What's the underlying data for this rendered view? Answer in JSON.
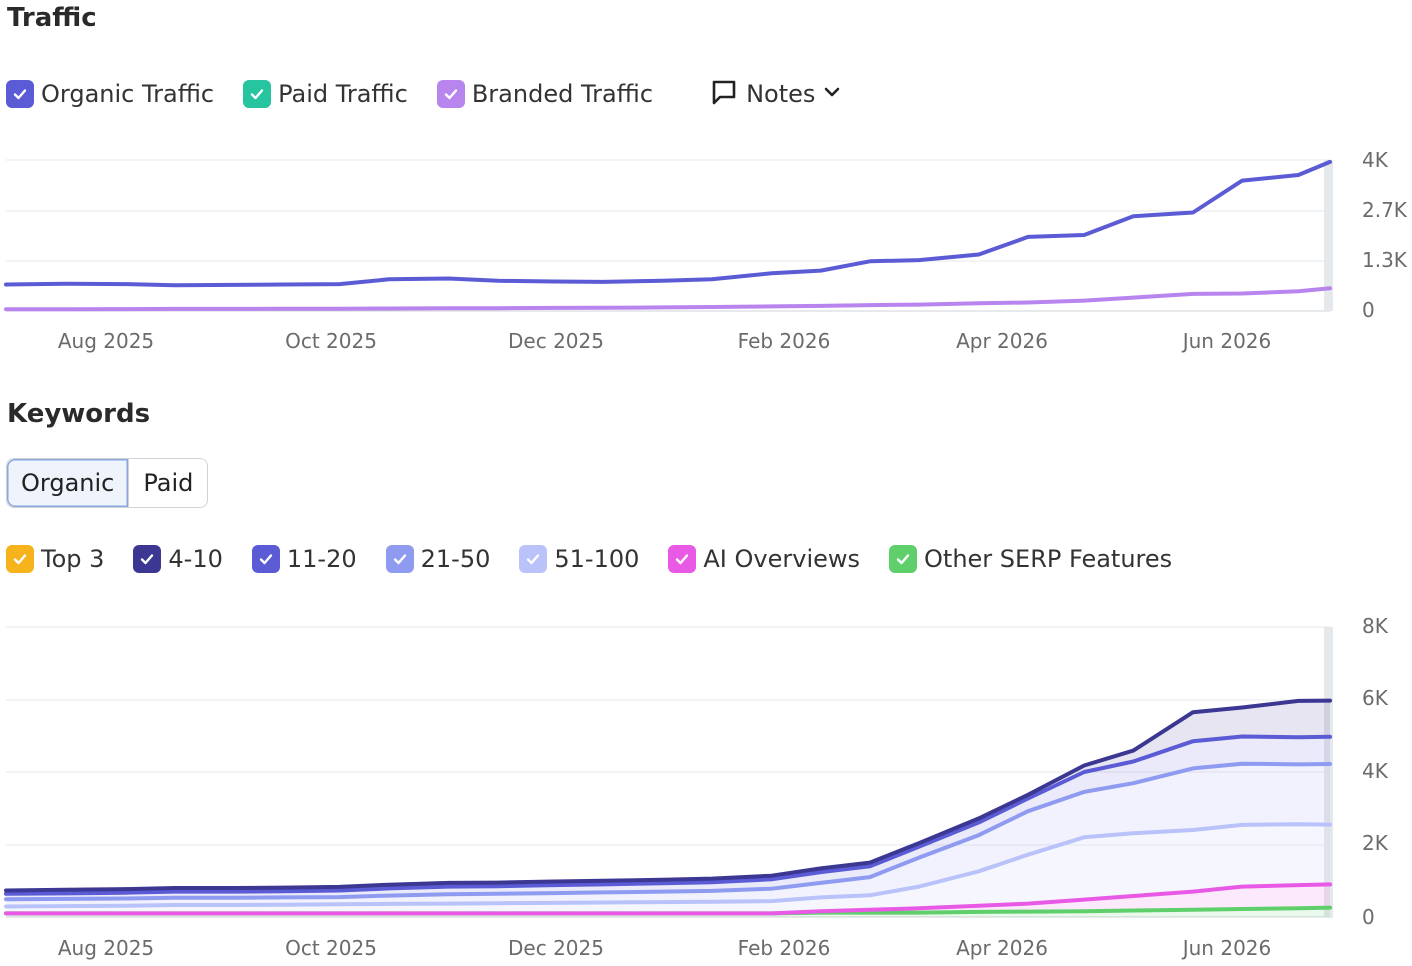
{
  "traffic": {
    "title": "Traffic",
    "legend": [
      {
        "label": "Organic Traffic",
        "color": "#5b5bd6"
      },
      {
        "label": "Paid Traffic",
        "color": "#27c4a0"
      },
      {
        "label": "Branded Traffic",
        "color": "#b884ee"
      }
    ],
    "notes_label": "Notes",
    "notes_icon": "speech-bubble-icon",
    "dropdown_icon": "chevron-down-icon"
  },
  "keywords": {
    "title": "Keywords",
    "tabs": [
      "Organic",
      "Paid"
    ],
    "active_tab": "Organic",
    "legend": [
      {
        "label": "Top 3",
        "color": "#f7b31b"
      },
      {
        "label": "4-10",
        "color": "#3b3792"
      },
      {
        "label": "11-20",
        "color": "#5a5bd5"
      },
      {
        "label": "21-50",
        "color": "#8f9bf0"
      },
      {
        "label": "51-100",
        "color": "#b9c3fa"
      },
      {
        "label": "AI Overviews",
        "color": "#e85ae6"
      },
      {
        "label": "Other SERP Features",
        "color": "#5ecf6a"
      }
    ]
  },
  "chart_data": [
    {
      "type": "line",
      "x_tick_labels": [
        "Aug 2025",
        "Oct 2025",
        "Dec 2025",
        "Feb 2026",
        "Apr 2026",
        "Jun 2026"
      ],
      "y_tick_labels": [
        "0",
        "1.3K",
        "2.7K",
        "4K"
      ],
      "ylim": [
        0,
        4000
      ],
      "grid": true,
      "x": [
        "2025-06-28",
        "2025-07-15",
        "2025-08-01",
        "2025-08-15",
        "2025-09-01",
        "2025-09-15",
        "2025-10-01",
        "2025-10-15",
        "2025-11-01",
        "2025-11-15",
        "2025-12-01",
        "2025-12-15",
        "2026-01-01",
        "2026-01-15",
        "2026-02-01",
        "2026-02-15",
        "2026-03-01",
        "2026-03-15",
        "2026-04-01",
        "2026-04-15",
        "2026-05-01",
        "2026-05-15",
        "2026-06-01",
        "2026-06-15",
        "2026-07-01",
        "2026-07-10"
      ],
      "series": [
        {
          "name": "Organic Traffic",
          "color": "#5b5bd6",
          "values": [
            680,
            700,
            690,
            660,
            670,
            680,
            690,
            820,
            840,
            780,
            760,
            750,
            780,
            820,
            980,
            1050,
            1300,
            1330,
            1480,
            1950,
            2000,
            2500,
            2600,
            3450,
            3600,
            3950
          ]
        },
        {
          "name": "Branded Traffic",
          "color": "#b884ee",
          "values": [
            20,
            22,
            25,
            28,
            30,
            32,
            35,
            40,
            45,
            48,
            55,
            60,
            70,
            80,
            95,
            110,
            130,
            145,
            180,
            200,
            250,
            330,
            430,
            440,
            500,
            580
          ]
        }
      ]
    },
    {
      "type": "area",
      "stacked": true,
      "x_tick_labels": [
        "Aug 2025",
        "Oct 2025",
        "Dec 2025",
        "Feb 2026",
        "Apr 2026",
        "Jun 2026"
      ],
      "y_tick_labels": [
        "0",
        "2K",
        "4K",
        "6K",
        "8K"
      ],
      "ylim": [
        0,
        8000
      ],
      "grid": true,
      "x": [
        "2025-06-28",
        "2025-07-15",
        "2025-08-01",
        "2025-08-15",
        "2025-09-01",
        "2025-09-15",
        "2025-10-01",
        "2025-10-15",
        "2025-11-01",
        "2025-11-15",
        "2025-12-01",
        "2025-12-15",
        "2026-01-01",
        "2026-01-15",
        "2026-02-01",
        "2026-02-15",
        "2026-03-01",
        "2026-03-15",
        "2026-04-01",
        "2026-04-15",
        "2026-05-01",
        "2026-05-15",
        "2026-06-01",
        "2026-06-15",
        "2026-07-01",
        "2026-07-10"
      ],
      "series": [
        {
          "name": "Other SERP Features",
          "color": "#5ecf6a",
          "values": [
            100,
            100,
            100,
            100,
            100,
            100,
            100,
            100,
            100,
            100,
            100,
            100,
            100,
            100,
            100,
            120,
            120,
            120,
            140,
            150,
            160,
            180,
            200,
            220,
            240,
            260
          ]
        },
        {
          "name": "AI Overviews",
          "color": "#e85ae6",
          "values": [
            0,
            0,
            0,
            0,
            0,
            0,
            0,
            0,
            0,
            0,
            0,
            0,
            0,
            0,
            0,
            40,
            80,
            120,
            170,
            220,
            320,
            400,
            500,
            620,
            640,
            640
          ]
        },
        {
          "name": "51-100",
          "color": "#b9c3fa",
          "values": [
            190,
            200,
            210,
            230,
            230,
            240,
            250,
            260,
            270,
            280,
            290,
            300,
            310,
            320,
            340,
            380,
            400,
            600,
            950,
            1350,
            1720,
            1730,
            1700,
            1700,
            1680,
            1650
          ]
        },
        {
          "name": "21-50",
          "color": "#8f9bf0",
          "values": [
            200,
            200,
            200,
            200,
            200,
            200,
            200,
            230,
            260,
            260,
            270,
            280,
            290,
            300,
            340,
            400,
            500,
            800,
            1000,
            1200,
            1250,
            1380,
            1700,
            1690,
            1650,
            1670
          ]
        },
        {
          "name": "11-20",
          "color": "#5a5bd5",
          "values": [
            150,
            150,
            160,
            170,
            170,
            170,
            180,
            200,
            210,
            210,
            220,
            220,
            230,
            240,
            260,
            300,
            300,
            300,
            350,
            350,
            550,
            600,
            750,
            750,
            750,
            750
          ]
        },
        {
          "name": "4-10",
          "color": "#3b3792",
          "values": [
            90,
            100,
            100,
            100,
            100,
            100,
            100,
            100,
            100,
            100,
            100,
            100,
            100,
            100,
            100,
            100,
            100,
            100,
            110,
            100,
            180,
            300,
            800,
            800,
            1000,
            1000
          ]
        }
      ]
    }
  ]
}
